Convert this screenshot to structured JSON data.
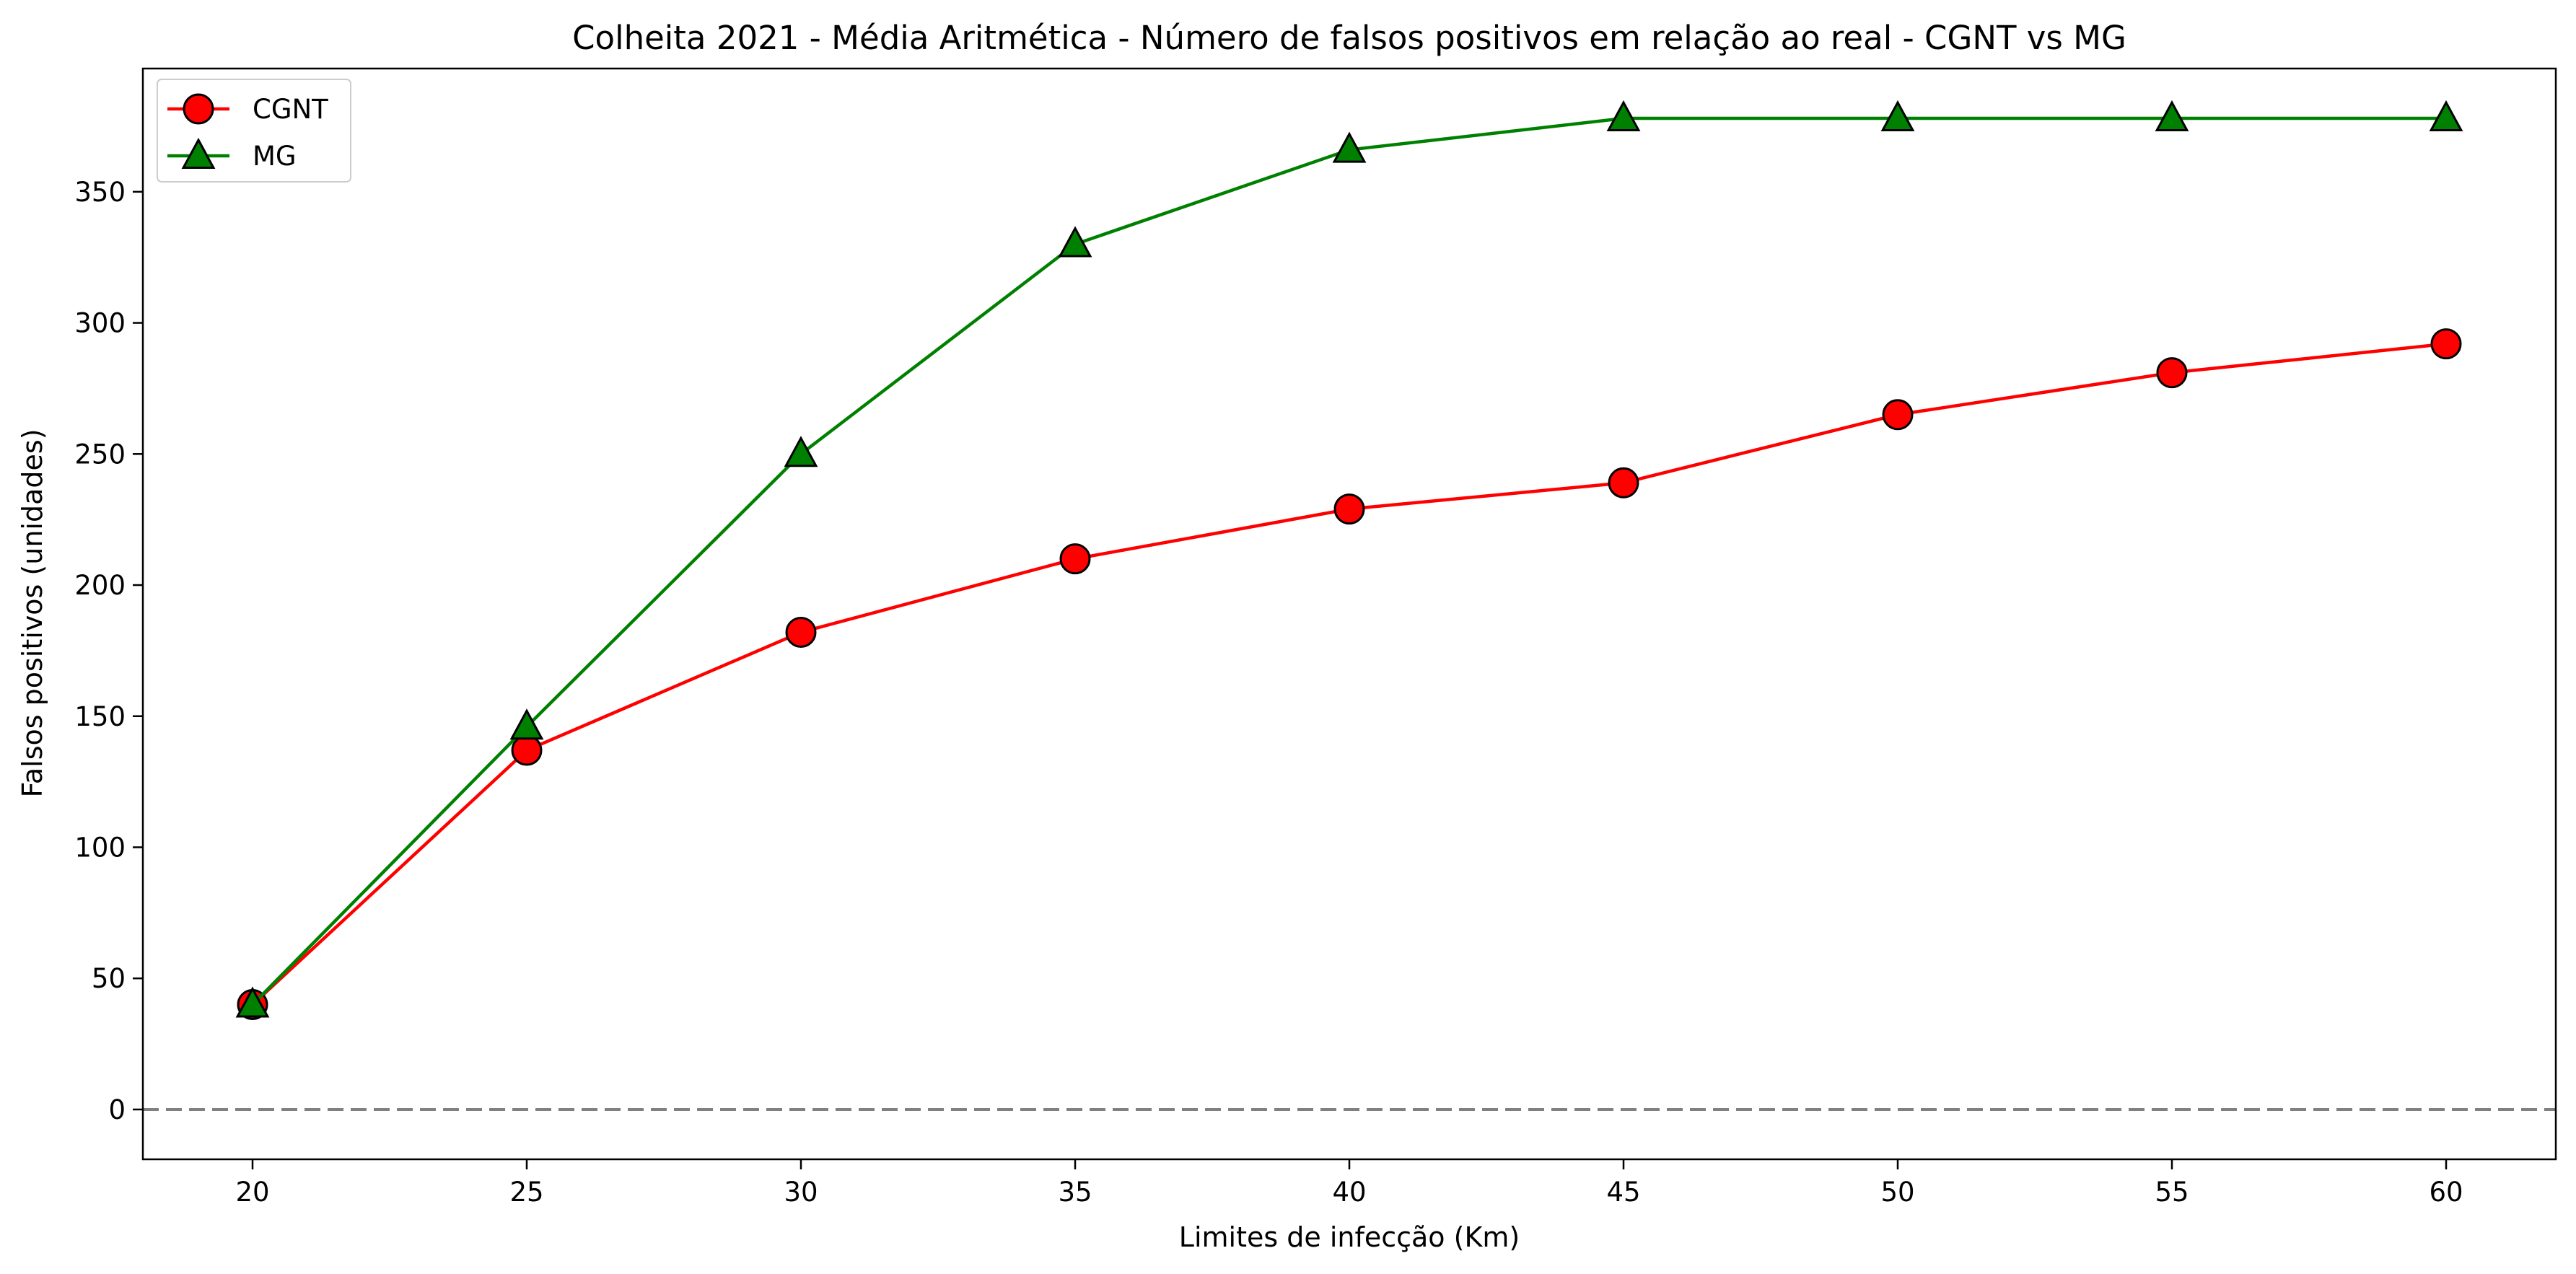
{
  "chart_data": {
    "type": "line",
    "title": "Colheita 2021 - Média Aritmética - Número de falsos positivos em relação ao real - CGNT vs MG",
    "xlabel": "Limites de infecção (Km)",
    "ylabel": "Falsos positivos (unidades)",
    "x": [
      20,
      25,
      30,
      35,
      40,
      45,
      50,
      55,
      60
    ],
    "xlim": [
      18,
      62
    ],
    "ylim": [
      -19,
      397
    ],
    "xticks": [
      20,
      25,
      30,
      35,
      40,
      45,
      50,
      55,
      60
    ],
    "yticks": [
      0,
      50,
      100,
      150,
      200,
      250,
      300,
      350
    ],
    "grid": false,
    "legend_position": "top-left",
    "reference_line": {
      "y": 0,
      "style": "dashed",
      "color": "#808080"
    },
    "series": [
      {
        "name": "CGNT",
        "color": "#ff0000",
        "marker": "circle",
        "marker_fill": "#ff0000",
        "values": [
          40,
          137,
          182,
          210,
          229,
          239,
          265,
          281,
          292
        ]
      },
      {
        "name": "MG",
        "color": "#008000",
        "marker": "triangle",
        "marker_fill": "#008000",
        "values": [
          40,
          146,
          250,
          330,
          366,
          378,
          378,
          378,
          378
        ]
      }
    ]
  }
}
